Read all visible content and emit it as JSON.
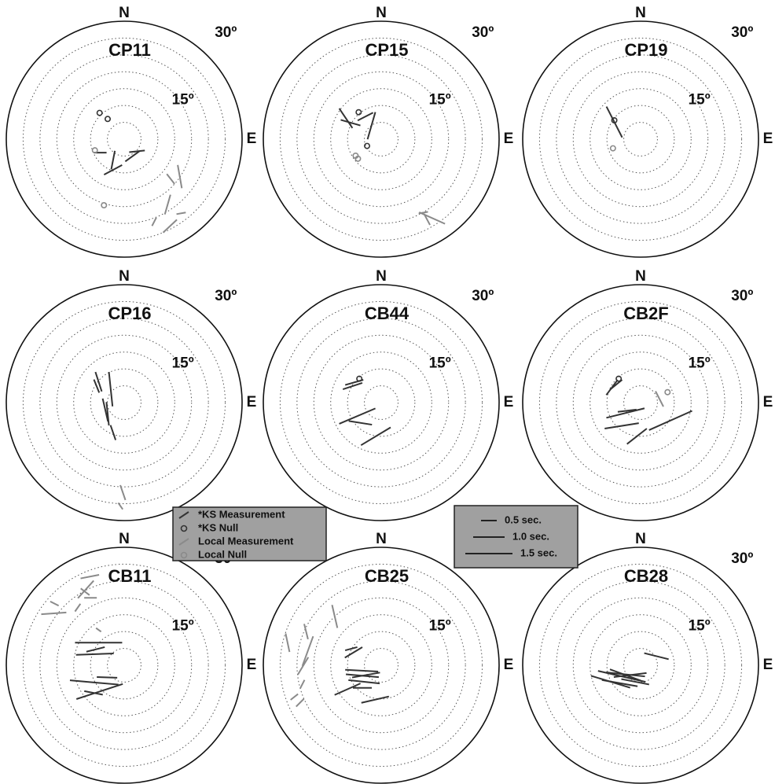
{
  "chart_data": [
    {
      "type": "polar",
      "title": "CP11",
      "north_label": "N",
      "east_label": "E",
      "rlim": [
        0,
        35
      ],
      "rticks": [
        5,
        10,
        15,
        20,
        25,
        30
      ],
      "rtick_labels": [
        {
          "value": 15,
          "label": "15º"
        },
        {
          "value": 30,
          "label": "30º"
        }
      ],
      "ks_measurements": {
        "east": [
          -3.3,
          -7.1,
          -3.3,
          2.4,
          3.8
        ],
        "north": [
          -9.1,
          -4.0,
          -6.2,
          -5.1,
          -3.6
        ],
        "phi": [
          62,
          90,
          11,
          54,
          84
        ],
        "dt": [
          0.65,
          0.4,
          0.6,
          0.55,
          0.5
        ]
      },
      "ks_nulls": {
        "east": [
          -7.3,
          -4.9
        ],
        "north": [
          7.8,
          6.0
        ]
      },
      "local_measurements": {
        "east": [
          13.8,
          16.5,
          12.9,
          16.9,
          13.6,
          8.9
        ],
        "north": [
          -11.8,
          -11.1,
          -19.4,
          -22.0,
          -25.8,
          -24.5
        ],
        "phi": [
          142,
          170,
          16,
          80,
          47,
          27
        ],
        "dt": [
          0.4,
          0.75,
          0.65,
          0.3,
          0.6,
          0.3
        ]
      },
      "local_nulls": {
        "east": [
          -6.0,
          -8.7
        ],
        "north": [
          -19.6,
          -3.3
        ]
      }
    },
    {
      "type": "polar",
      "title": "CP15",
      "north_label": "N",
      "east_label": "E",
      "rlim": [
        0,
        35
      ],
      "rticks": [
        5,
        10,
        15,
        20,
        25,
        30
      ],
      "rtick_labels": [
        {
          "value": 15,
          "label": "15º"
        },
        {
          "value": 30,
          "label": "30º"
        }
      ],
      "ks_measurements": {
        "east": [
          -10.5,
          -4.7,
          -2.9,
          -9.1
        ],
        "north": [
          6.2,
          6.7,
          4.0,
          4.9
        ],
        "phi": [
          146,
          63,
          16,
          106
        ],
        "dt": [
          0.75,
          0.55,
          0.9,
          0.65
        ]
      },
      "ks_nulls": {
        "east": [
          -6.7,
          -4.2
        ],
        "north": [
          8.0,
          -2.0
        ]
      },
      "local_measurements": {
        "east": [
          15.1,
          13.6,
          12.5
        ],
        "north": [
          -23.4,
          -23.8,
          -21.8
        ],
        "phi": [
          114,
          152,
          80
        ],
        "dt": [
          0.9,
          0.4,
          0.3
        ]
      },
      "local_nulls": {
        "east": [
          -7.6,
          -6.9
        ],
        "north": [
          -4.9,
          -5.8
        ]
      }
    },
    {
      "type": "polar",
      "title": "CP19",
      "north_label": "N",
      "east_label": "E",
      "rlim": [
        0,
        35
      ],
      "rticks": [
        5,
        10,
        15,
        20,
        25,
        30
      ],
      "rtick_labels": [
        {
          "value": 15,
          "label": "15º"
        },
        {
          "value": 30,
          "label": "30º"
        }
      ],
      "ks_measurements": {
        "east": [
          -7.8
        ],
        "north": [
          5.1
        ],
        "phi": [
          153
        ],
        "dt": [
          1.1
        ]
      },
      "ks_nulls": {
        "east": [
          -7.8
        ],
        "north": [
          5.6
        ]
      },
      "local_measurements": {
        "east": [],
        "north": [],
        "phi": [],
        "dt": []
      },
      "local_nulls": {
        "east": [
          -8.2
        ],
        "north": [
          -2.7
        ]
      }
    },
    {
      "type": "polar",
      "title": "CP16",
      "north_label": "N",
      "east_label": "E",
      "rlim": [
        0,
        35
      ],
      "rticks": [
        5,
        10,
        15,
        20,
        25,
        30
      ],
      "rtick_labels": [
        {
          "value": 15,
          "label": "15º"
        },
        {
          "value": 30,
          "label": "30º"
        }
      ],
      "ks_measurements": {
        "east": [
          -7.6,
          -4.0,
          -8.2,
          -5.6,
          -4.9,
          -3.3
        ],
        "north": [
          6.2,
          4.0,
          4.9,
          -2.2,
          -3.3,
          -8.9
        ],
        "phi": [
          162,
          174,
          158,
          167,
          174,
          161
        ],
        "dt": [
          0.65,
          1.1,
          0.45,
          0.75,
          0.75,
          0.5
        ]
      },
      "ks_nulls": {
        "east": [],
        "north": []
      },
      "local_measurements": {
        "east": [
          -0.4,
          -1.1
        ],
        "north": [
          -26.7,
          -30.7
        ],
        "phi": [
          161,
          145
        ],
        "dt": [
          0.5,
          0.25
        ]
      },
      "local_nulls": {
        "east": [],
        "north": []
      }
    },
    {
      "type": "polar",
      "title": "CB44",
      "north_label": "N",
      "east_label": "E",
      "rlim": [
        0,
        35
      ],
      "rticks": [
        5,
        10,
        15,
        20,
        25,
        30
      ],
      "rtick_labels": [
        {
          "value": 15,
          "label": "15º"
        },
        {
          "value": 30,
          "label": "30º"
        }
      ],
      "ks_measurements": {
        "east": [
          -8.5,
          -8.0,
          -7.1,
          -6.2,
          -1.6
        ],
        "north": [
          4.9,
          6.0,
          -4.0,
          -6.0,
          -10.0
        ],
        "phi": [
          72,
          74,
          67,
          99,
          59
        ],
        "dt": [
          0.65,
          0.6,
          1.25,
          0.75,
          1.1
        ]
      },
      "ks_nulls": {
        "east": [
          -6.5
        ],
        "north": [
          7.1
        ]
      },
      "local_measurements": {
        "east": [],
        "north": [],
        "phi": [],
        "dt": []
      },
      "local_nulls": {
        "east": [],
        "north": []
      }
    },
    {
      "type": "polar",
      "title": "CB2F",
      "north_label": "N",
      "east_label": "E",
      "rlim": [
        0,
        35
      ],
      "rticks": [
        5,
        10,
        15,
        20,
        25,
        30
      ],
      "rtick_labels": [
        {
          "value": 15,
          "label": "15º"
        },
        {
          "value": 30,
          "label": "30º"
        }
      ],
      "ks_measurements": {
        "east": [
          -8.5,
          -7.3,
          -4.5,
          -5.6,
          -1.1,
          8.9,
          -4.0
        ],
        "north": [
          4.5,
          5.3,
          -3.1,
          -6.9,
          -10.0,
          -5.3,
          -2.4
        ],
        "phi": [
          37,
          51,
          76,
          81,
          52,
          66,
          83
        ],
        "dt": [
          0.6,
          0.5,
          1.25,
          1.1,
          0.8,
          1.5,
          0.6
        ]
      },
      "ks_nulls": {
        "east": [
          -6.5
        ],
        "north": [
          7.1
        ]
      },
      "local_measurements": {
        "east": [
          5.6
        ],
        "north": [
          1.1
        ],
        "phi": [
          153
        ],
        "dt": [
          0.55
        ]
      },
      "local_nulls": {
        "east": [
          8.0
        ],
        "north": [
          3.1
        ]
      }
    },
    {
      "type": "polar",
      "title": "CB11",
      "north_label": "N",
      "east_label": "E",
      "rlim": [
        0,
        35
      ],
      "rticks": [
        5,
        10,
        15,
        20,
        25,
        30
      ],
      "rtick_labels": [
        {
          "value": 15,
          "label": "15º"
        },
        {
          "value": 30,
          "label": "30º"
        }
      ],
      "ks_measurements": {
        "east": [
          -7.6,
          -8.7,
          -8.5,
          -8.9,
          -7.3,
          -9.1,
          -5.1
        ],
        "north": [
          6.7,
          3.3,
          4.7,
          -5.1,
          -7.8,
          -8.2,
          -3.6
        ],
        "phi": [
          90,
          88,
          76,
          95,
          72,
          101,
          92
        ],
        "dt": [
          1.5,
          1.2,
          0.6,
          1.55,
          1.55,
          0.6,
          0.65
        ]
      },
      "ks_nulls": {
        "east": [],
        "north": []
      },
      "local_measurements": {
        "east": [
          -10.2,
          -20.9,
          -11.4,
          -11.6,
          -13.8,
          -20.7,
          -7.6,
          -10.0
        ],
        "north": [
          26.3,
          15.4,
          22.5,
          21.8,
          17.1,
          18.3,
          10.5,
          20.0
        ],
        "phi": [
          79,
          86,
          42,
          127,
          35,
          117,
          126,
          90
        ],
        "dt": [
          0.6,
          0.8,
          0.75,
          0.35,
          0.3,
          0.3,
          0.2,
          0.4
        ]
      },
      "local_nulls": {
        "east": [],
        "north": []
      }
    },
    {
      "type": "polar",
      "title": "CB25",
      "north_label": "N",
      "east_label": "E",
      "rlim": [
        0,
        35
      ],
      "rticks": [
        5,
        10,
        15,
        20,
        25,
        30
      ],
      "rtick_labels": [
        {
          "value": 15,
          "label": "15º"
        },
        {
          "value": 30,
          "label": "30º"
        }
      ],
      "ks_measurements": {
        "east": [
          -8.2,
          -8.9,
          -5.6,
          -5.1,
          -5.8,
          -4.5,
          -10.0,
          -1.8,
          -5.6
        ],
        "north": [
          3.8,
          4.9,
          -3.1,
          -4.9,
          -1.6,
          -2.9,
          -7.1,
          -10.2,
          -6.7
        ],
        "phi": [
          59,
          75,
          95,
          96,
          93,
          80,
          66,
          77,
          90
        ],
        "dt": [
          0.65,
          0.4,
          1.05,
          1.0,
          1.05,
          0.9,
          0.9,
          0.9,
          0.6
        ]
      },
      "ks_nulls": {
        "east": [],
        "north": []
      },
      "local_measurements": {
        "east": [
          -21.8,
          -23.2,
          -27.8,
          -22.3,
          -13.8,
          -25.8,
          -24.1,
          -23.4
        ],
        "north": [
          4.2,
          -0.2,
          6.7,
          10.0,
          14.5,
          -9.4,
          -11.1,
          -5.6
        ],
        "phi": [
          20,
          31,
          168,
          166,
          167,
          52,
          45,
          27
        ],
        "dt": [
          1.0,
          0.65,
          0.6,
          0.5,
          0.75,
          0.3,
          0.35,
          0.3
        ]
      },
      "local_nulls": {
        "east": [],
        "north": []
      }
    },
    {
      "type": "polar",
      "title": "CB28",
      "north_label": "N",
      "east_label": "E",
      "rlim": [
        0,
        35
      ],
      "rticks": [
        5,
        10,
        15,
        20,
        25,
        30
      ],
      "rtick_labels": [
        {
          "value": 15,
          "label": "15º"
        },
        {
          "value": 30,
          "label": "30º"
        }
      ],
      "ks_measurements": {
        "east": [
          4.7,
          -8.9,
          -5.6,
          -4.5,
          -4.5,
          -6.2,
          -1.6,
          -3.1
        ],
        "north": [
          2.7,
          -4.9,
          -3.3,
          -2.7,
          -2.9,
          -5.3,
          -4.9,
          -2.9
        ],
        "phi": [
          104,
          107,
          103,
          96,
          110,
          100,
          101,
          83
        ],
        "dt": [
          0.8,
          1.3,
          1.55,
          1.25,
          1.05,
          1.15,
          0.9,
          1.05
        ]
      },
      "ks_nulls": {
        "east": [],
        "north": []
      },
      "local_measurements": {
        "east": [],
        "north": [],
        "phi": [],
        "dt": []
      },
      "local_nulls": {
        "east": [],
        "north": []
      }
    }
  ],
  "legend": [
    {
      "name": "*KS Measurement",
      "color": "#333333"
    },
    {
      "name": "*KS Null",
      "color": "#333333"
    },
    {
      "name": "Local Measurement",
      "color": "#8a8a8a"
    },
    {
      "name": "Local Null",
      "color": "#8a8a8a"
    }
  ],
  "scale_legend": [
    {
      "value": 0.5,
      "label": "0.5 sec."
    },
    {
      "value": 1.0,
      "label": "1.0 sec."
    },
    {
      "value": 1.5,
      "label": "1.5 sec."
    }
  ]
}
